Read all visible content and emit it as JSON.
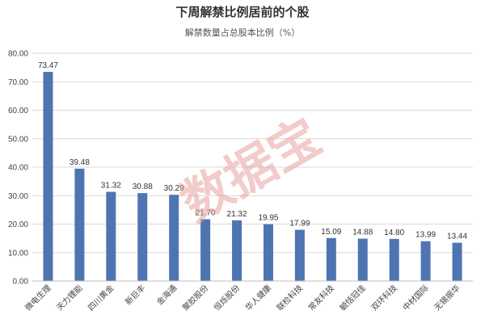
{
  "watermark": "数据宝",
  "colors": {
    "bar": "#4f74b2",
    "grid": "#d9d9d9",
    "axis": "#bfbfbf",
    "watermark": "#e8a0a0"
  },
  "chart_data": {
    "type": "bar",
    "title": "下周解禁比例居前的个股",
    "subtitle": "解禁数量占总股本比例（%）",
    "xlabel": "",
    "ylabel": "",
    "categories": [
      "微电生理",
      "天力锂能",
      "四川黄金",
      "新巨丰",
      "金海通",
      "聚胶股份",
      "恒烁股份",
      "华人健康",
      "联检科技",
      "常友科技",
      "毓恬冠佳",
      "双环科技",
      "中材国际",
      "无锡振华"
    ],
    "values": [
      73.47,
      39.48,
      31.32,
      30.88,
      30.29,
      21.7,
      21.32,
      19.95,
      17.99,
      15.09,
      14.88,
      14.8,
      13.99,
      13.44
    ],
    "value_labels": [
      "73.47",
      "39.48",
      "31.32",
      "30.88",
      "30.29",
      "21.70",
      "21.32",
      "19.95",
      "17.99",
      "15.09",
      "14.88",
      "14.80",
      "13.99",
      "13.44"
    ],
    "ylim": [
      0,
      80
    ],
    "yticks": [
      0,
      10,
      20,
      30,
      40,
      50,
      60,
      70,
      80
    ],
    "ytick_labels": [
      "0.00",
      "10.00",
      "20.00",
      "30.00",
      "40.00",
      "50.00",
      "60.00",
      "70.00",
      "80.00"
    ],
    "grid": true,
    "legend": "none"
  }
}
